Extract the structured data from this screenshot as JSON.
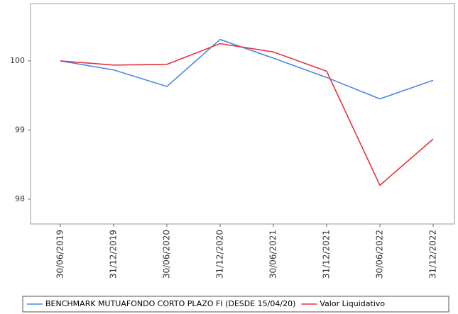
{
  "chart_data": {
    "type": "line",
    "categories": [
      "30/06/2019",
      "31/12/2019",
      "30/06/2020",
      "31/12/2020",
      "30/06/2021",
      "31/12/2021",
      "30/06/2022",
      "31/12/2022"
    ],
    "series": [
      {
        "name": "BENCHMARK MUTUAFONDO CORTO PLAZO FI (DESDE 15/04/20)",
        "color": "#4a86e8",
        "values": [
          100.0,
          99.87,
          99.63,
          100.31,
          100.04,
          99.76,
          99.45,
          99.72
        ]
      },
      {
        "name": "Valor Liquidativo",
        "color": "#e8333b",
        "values": [
          100.0,
          99.94,
          99.95,
          100.25,
          100.13,
          99.85,
          98.2,
          98.87
        ]
      }
    ],
    "ylim": [
      97.64,
      100.83
    ],
    "yticks": [
      98,
      99,
      100
    ]
  }
}
